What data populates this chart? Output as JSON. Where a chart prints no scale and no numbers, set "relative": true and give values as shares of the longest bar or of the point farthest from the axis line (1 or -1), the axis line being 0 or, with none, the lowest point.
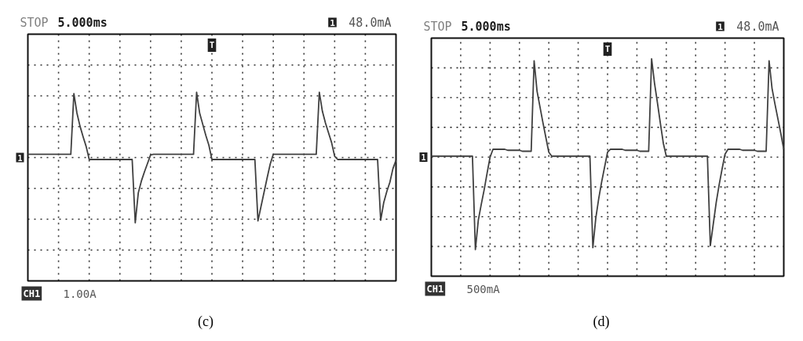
{
  "chart_data": [
    {
      "type": "line",
      "title": "(c)",
      "categories": [
        null,
        null,
        null,
        null,
        null,
        null,
        null,
        null,
        null,
        null,
        null,
        null,
        null,
        null,
        null,
        null,
        null,
        null,
        null,
        null,
        null,
        null,
        null,
        null,
        null,
        null,
        null,
        null,
        null,
        null,
        null,
        null,
        null,
        null,
        null,
        null,
        null,
        null,
        null,
        null,
        null,
        null,
        null,
        null,
        null,
        null,
        null,
        null,
        null,
        null,
        null,
        null,
        null,
        null,
        null,
        null,
        null,
        null,
        null,
        null,
        null,
        null,
        null,
        null,
        null,
        null,
        null,
        null,
        null,
        null,
        null,
        null,
        null,
        null,
        null,
        null,
        null,
        null,
        null,
        null,
        null,
        null,
        null,
        null,
        null,
        null,
        null,
        null,
        null,
        null,
        null,
        null,
        null,
        null,
        null,
        null,
        null,
        null,
        null,
        null,
        null,
        null,
        null,
        null,
        null,
        null,
        null,
        null,
        null,
        null,
        null,
        null,
        null,
        null,
        null,
        null,
        null,
        null,
        null,
        null,
        null
      ],
      "values": [
        0.05,
        0.05,
        0.05,
        0.05,
        0.05,
        0.05,
        0.05,
        0.05,
        0.05,
        0.05,
        0.05,
        0.05,
        0.05,
        0.05,
        0.05,
        0.98,
        0.68,
        0.48,
        0.32,
        0.17,
        -0.03,
        -0.03,
        -0.03,
        -0.03,
        -0.03,
        -0.03,
        -0.03,
        -0.03,
        -0.03,
        -0.03,
        -0.03,
        -0.03,
        -0.03,
        -0.03,
        -0.03,
        -1.0,
        -0.54,
        -0.36,
        -0.22,
        -0.09,
        0.04,
        0.05,
        0.05,
        0.05,
        0.05,
        0.05,
        0.05,
        0.05,
        0.05,
        0.05,
        0.05,
        0.05,
        0.05,
        0.05,
        0.05,
        1.0,
        0.68,
        0.51,
        0.34,
        0.19,
        -0.03,
        -0.03,
        -0.03,
        -0.03,
        -0.03,
        -0.03,
        -0.03,
        -0.03,
        -0.03,
        -0.03,
        -0.03,
        -0.03,
        -0.03,
        -0.03,
        -0.03,
        -0.97,
        -0.75,
        -0.53,
        -0.31,
        -0.1,
        0.05,
        0.05,
        0.05,
        0.05,
        0.05,
        0.05,
        0.05,
        0.05,
        0.05,
        0.05,
        0.05,
        0.05,
        0.05,
        0.05,
        0.05,
        1.0,
        0.71,
        0.53,
        0.38,
        0.23,
        0.02,
        -0.03,
        -0.03,
        -0.03,
        -0.03,
        -0.03,
        -0.03,
        -0.03,
        -0.03,
        -0.03,
        -0.03,
        -0.03,
        -0.03,
        -0.03,
        -0.03,
        -0.96,
        -0.69,
        -0.52,
        -0.38,
        -0.17,
        -0.04
      ],
      "color": "#404040",
      "relative": true,
      "grid": true,
      "tick_labels": false,
      "annotations": [
        "STOP",
        "5.000ms",
        "1",
        "48.0mA",
        "CH1",
        "1.00A",
        "1",
        "T"
      ]
    },
    {
      "type": "line",
      "title": "(d)",
      "categories": [
        null,
        null,
        null,
        null,
        null,
        null,
        null,
        null,
        null,
        null,
        null,
        null,
        null,
        null,
        null,
        null,
        null,
        null,
        null,
        null,
        null,
        null,
        null,
        null,
        null,
        null,
        null,
        null,
        null,
        null,
        null,
        null,
        null,
        null,
        null,
        null,
        null,
        null,
        null,
        null,
        null,
        null,
        null,
        null,
        null,
        null,
        null,
        null,
        null,
        null,
        null,
        null,
        null,
        null,
        null,
        null,
        null,
        null,
        null,
        null,
        null,
        null,
        null,
        null,
        null,
        null,
        null,
        null,
        null,
        null,
        null,
        null,
        null,
        null,
        null,
        null,
        null,
        null,
        null,
        null,
        null,
        null,
        null,
        null,
        null,
        null,
        null,
        null,
        null,
        null,
        null,
        null,
        null,
        null,
        null,
        null,
        null,
        null,
        null,
        null,
        null,
        null,
        null,
        null,
        null,
        null,
        null,
        null,
        null,
        null,
        null,
        null,
        null,
        null,
        null,
        null,
        null,
        null,
        null,
        null,
        null
      ],
      "values": [
        0.01,
        0.01,
        0.01,
        0.01,
        0.01,
        0.01,
        0.01,
        0.01,
        0.01,
        0.01,
        0.01,
        0.01,
        0.01,
        0.01,
        0.01,
        -0.94,
        -0.64,
        -0.48,
        -0.33,
        -0.16,
        0.0,
        0.08,
        0.08,
        0.08,
        0.08,
        0.08,
        0.07,
        0.07,
        0.07,
        0.07,
        0.07,
        0.06,
        0.06,
        0.06,
        0.06,
        0.98,
        0.67,
        0.51,
        0.35,
        0.2,
        0.05,
        0.01,
        0.01,
        0.01,
        0.01,
        0.01,
        0.01,
        0.01,
        0.01,
        0.01,
        0.01,
        0.01,
        0.01,
        0.01,
        0.01,
        -0.92,
        -0.62,
        -0.42,
        -0.25,
        -0.1,
        0.05,
        0.08,
        0.08,
        0.08,
        0.08,
        0.08,
        0.07,
        0.07,
        0.07,
        0.07,
        0.07,
        0.06,
        0.06,
        0.06,
        0.06,
        1.0,
        0.75,
        0.55,
        0.34,
        0.14,
        0.01,
        0.01,
        0.01,
        0.01,
        0.01,
        0.01,
        0.01,
        0.01,
        0.01,
        0.01,
        0.01,
        0.01,
        0.01,
        0.01,
        0.01,
        -0.9,
        -0.68,
        -0.46,
        -0.28,
        -0.12,
        0.03,
        0.08,
        0.08,
        0.08,
        0.08,
        0.08,
        0.07,
        0.07,
        0.07,
        0.07,
        0.07,
        0.06,
        0.06,
        0.06,
        0.06,
        0.98,
        0.7,
        0.54,
        0.39,
        0.24,
        0.08
      ],
      "color": "#404040",
      "relative": true,
      "grid": true,
      "tick_labels": false,
      "annotations": [
        "STOP",
        "5.000ms",
        "1",
        "48.0mA",
        "CH1",
        "500mA",
        "1",
        "T"
      ]
    }
  ]
}
